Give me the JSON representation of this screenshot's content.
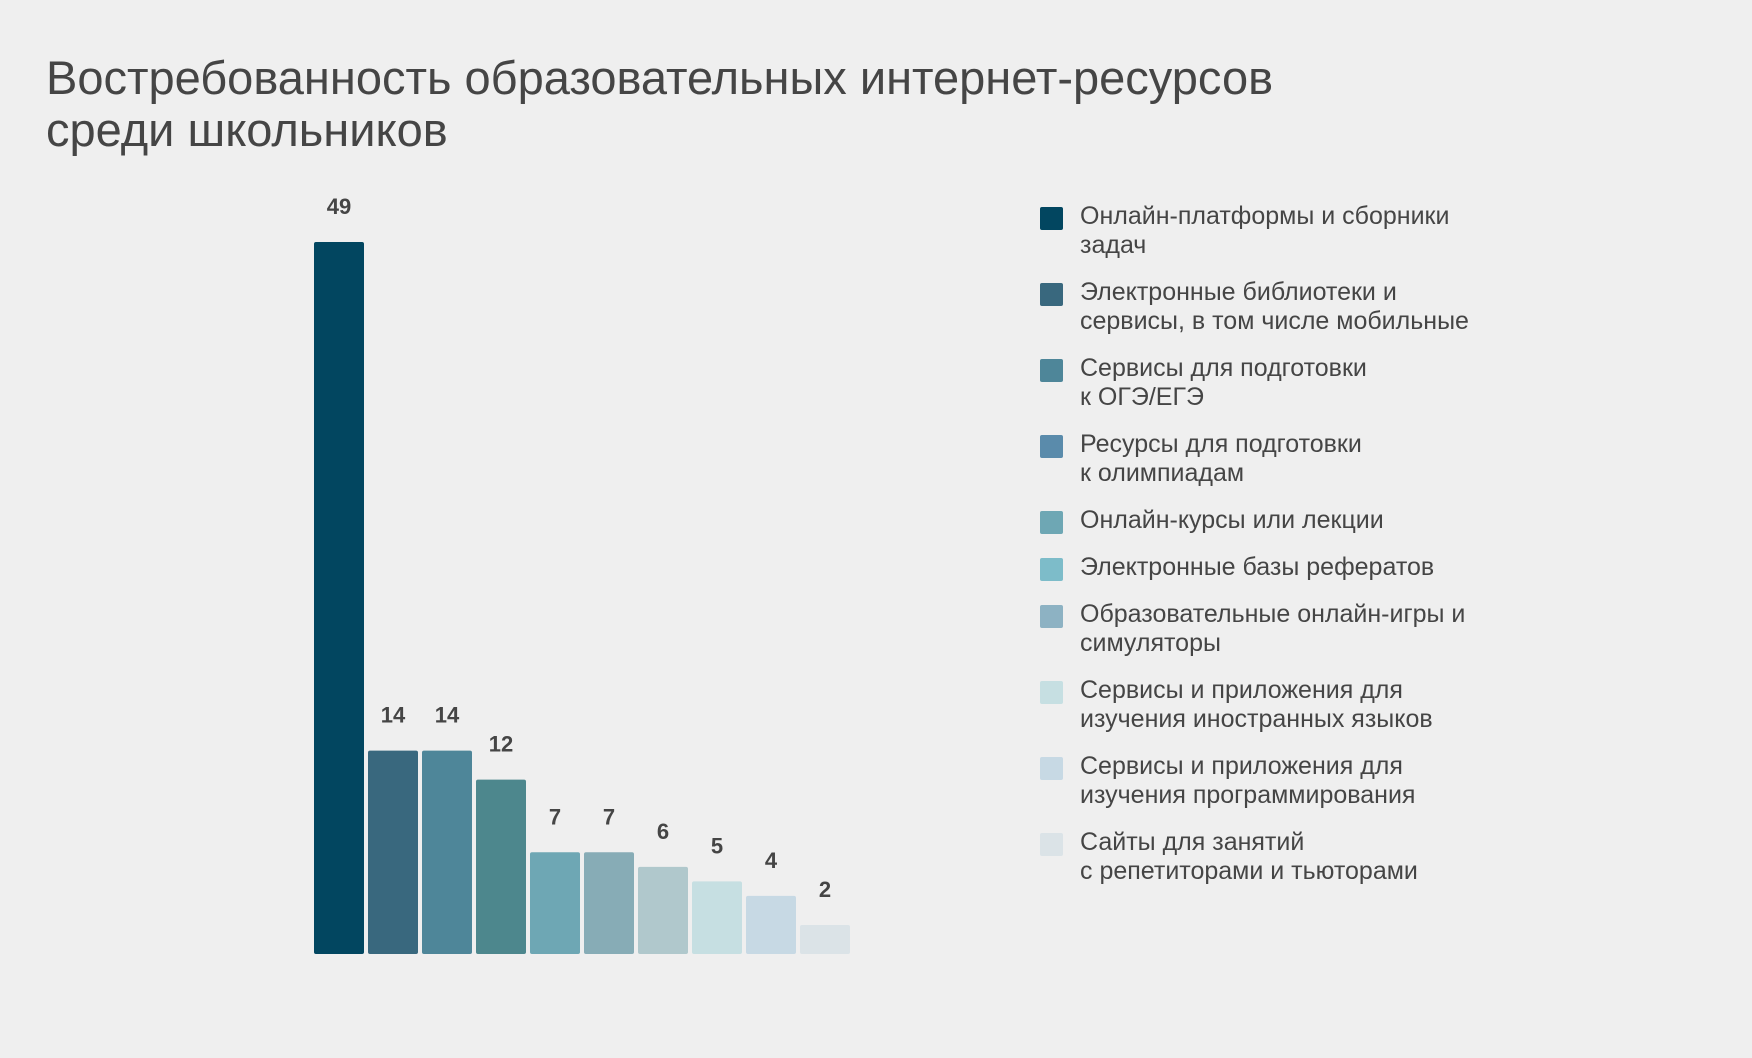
{
  "chart_data": {
    "type": "bar",
    "title": [
      "Востребованность образовательных интернет-ресурсов",
      "среди школьников"
    ],
    "categories": [
      "Онлайн-платформы и сборники\nзадач",
      "Электронные библиотеки и\nсервисы, в том числе мобильные",
      "Сервисы для подготовки\nк ОГЭ/ЕГЭ",
      "Ресурсы для подготовки\nк олимпиадам",
      "Онлайн-курсы или лекции",
      "Электронные базы рефератов",
      "Образовательные онлайн-игры и\nсимуляторы",
      "Сервисы и приложения для\nизучения иностранных языков",
      "Сервисы и приложения для\nизучения программирования",
      "Сайты для занятий\nс репетиторами и тьюторами"
    ],
    "values": [
      49,
      14,
      14,
      12,
      7,
      7,
      6,
      5,
      4,
      2
    ],
    "colors": [
      "#024660",
      "#39687e",
      "#4e8699",
      "#4d878d",
      "#6ea7b4",
      "#87acb6",
      "#b0c8cc",
      "#c6dfe2",
      "#c7d9e4",
      "#dbe3e7"
    ],
    "legend_colors": [
      "#024660",
      "#39687e",
      "#4e8699",
      "#5a8bab",
      "#6ea7b4",
      "#7dbcc9",
      "#8db2c3",
      "#c6dfe2",
      "#c7d9e4",
      "#dbe3e7"
    ],
    "ylim": [
      0,
      49
    ],
    "legend_position": "right",
    "grid": false
  }
}
